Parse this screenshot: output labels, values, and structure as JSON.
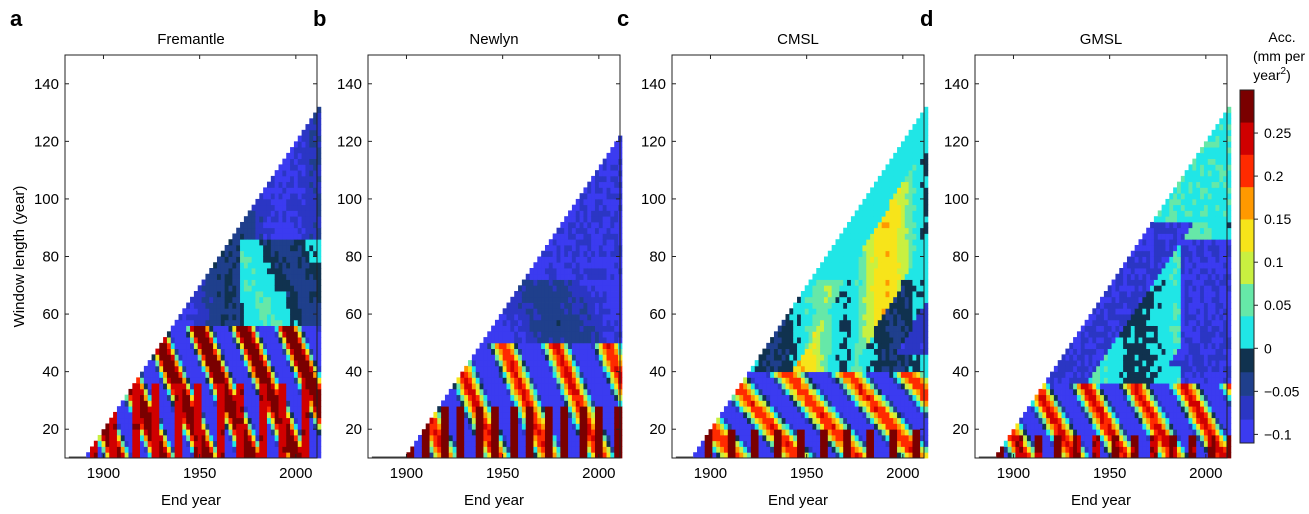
{
  "chart_data": [
    {
      "type": "heatmap",
      "panel_letter": "a",
      "title": "Fremantle",
      "xlabel": "End year",
      "ylabel": "Window length (year)",
      "xlim": [
        1880,
        2011
      ],
      "ylim": [
        10,
        150
      ],
      "xticks": [
        1900,
        1950,
        2000
      ],
      "yticks": [
        20,
        40,
        60,
        80,
        100,
        120,
        140
      ],
      "data_start_year": 1881,
      "last_end_year": 2011,
      "min_window": 10,
      "max_window": 131,
      "regions": "acceleration colour map (triangular valid region); negative (blue/dark) at longer windows, positive bursts (red) at short windows"
    },
    {
      "type": "heatmap",
      "panel_letter": "b",
      "title": "Newlyn",
      "xlabel": "End year",
      "xlim": [
        1880,
        2011
      ],
      "ylim": [
        10,
        150
      ],
      "xticks": [
        1900,
        1950,
        2000
      ],
      "yticks": [
        20,
        40,
        60,
        80,
        100,
        120,
        140
      ],
      "data_start_year": 1890,
      "last_end_year": 2011,
      "min_window": 10,
      "max_window": 122
    },
    {
      "type": "heatmap",
      "panel_letter": "c",
      "title": "CMSL",
      "xlabel": "End year",
      "xlim": [
        1880,
        2011
      ],
      "ylim": [
        10,
        150
      ],
      "xticks": [
        1900,
        1950,
        2000
      ],
      "yticks": [
        20,
        40,
        60,
        80,
        100,
        120,
        140
      ],
      "data_start_year": 1881,
      "last_end_year": 2011,
      "min_window": 10,
      "max_window": 131
    },
    {
      "type": "heatmap",
      "panel_letter": "d",
      "title": "GMSL",
      "xlabel": "End year",
      "xlim": [
        1880,
        2011
      ],
      "ylim": [
        10,
        150
      ],
      "xticks": [
        1900,
        1950,
        2000
      ],
      "yticks": [
        20,
        40,
        60,
        80,
        100,
        120,
        140
      ],
      "data_start_year": 1881,
      "last_end_year": 2011,
      "min_window": 10,
      "max_window": 131
    }
  ],
  "colorbar": {
    "title_lines": [
      "Acc.",
      "(mm per",
      "year"
    ],
    "title_superscript": "2",
    "title_close": ")",
    "range": [
      -0.11,
      0.3
    ],
    "ticks": [
      -0.1,
      -0.05,
      0,
      0.05,
      0.1,
      0.15,
      0.2,
      0.25
    ],
    "tick_labels": [
      "−0.1",
      "−0.05",
      "0",
      "0.05",
      "0.1",
      "0.15",
      "0.2",
      "0.25"
    ],
    "negative_colors": [
      "#3b3bf0",
      "#2b36c4",
      "#1f3f8c",
      "#10324f"
    ],
    "positive_colors": [
      "#20e6e6",
      "#66e8a8",
      "#c9f040",
      "#f7e41a",
      "#ff9900",
      "#ff2a00",
      "#d00000",
      "#7a0000"
    ]
  }
}
